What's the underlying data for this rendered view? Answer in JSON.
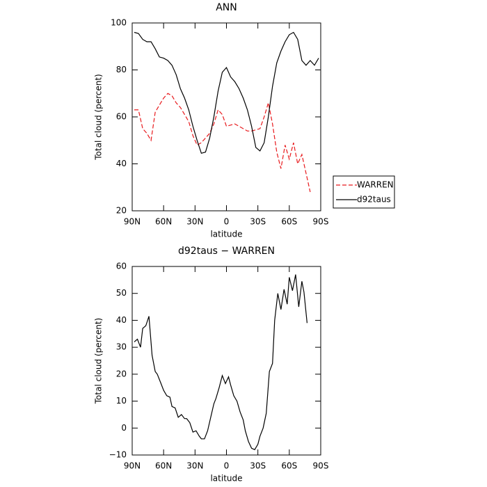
{
  "chart_data": [
    {
      "type": "line",
      "title": "ANN",
      "xlabel": "latitude",
      "ylabel": "Total cloud (percent)",
      "x": [
        88,
        84,
        80,
        76,
        72,
        68,
        64,
        60,
        56,
        52,
        48,
        44,
        40,
        36,
        32,
        28,
        24,
        20,
        16,
        12,
        8,
        4,
        0,
        -4,
        -8,
        -12,
        -16,
        -20,
        -24,
        -28,
        -32,
        -36,
        -40,
        -44,
        -48,
        -52,
        -56,
        -60,
        -64,
        -68,
        -72,
        -76,
        -80,
        -84,
        -88
      ],
      "series": [
        {
          "name": "WARREN",
          "color": "#e8191c",
          "line_style": "dashed",
          "values": [
            63,
            63,
            55,
            53,
            50,
            62,
            65,
            68,
            70,
            69,
            66,
            64,
            61,
            58,
            52,
            48,
            49,
            51,
            53,
            57,
            63,
            61,
            56,
            56.5,
            57,
            56,
            55,
            54,
            54,
            54.5,
            55,
            60,
            66,
            57,
            45,
            38,
            48,
            42,
            49,
            40,
            44,
            36,
            28,
            null,
            null
          ]
        },
        {
          "name": "d92taus",
          "color": "#000000",
          "line_style": "solid",
          "values": [
            96,
            95.5,
            93,
            92,
            92,
            89,
            85.5,
            85,
            84,
            82,
            78,
            72,
            68,
            63,
            56,
            50,
            44.5,
            45,
            51,
            60,
            71,
            79,
            81,
            77,
            75,
            72,
            68,
            63,
            56,
            47,
            45.5,
            49,
            60,
            73,
            83,
            88,
            92,
            95,
            96,
            93,
            84,
            82,
            84,
            82,
            85
          ]
        }
      ],
      "xlim": [
        90,
        -90
      ],
      "xticks": [
        {
          "value": 90,
          "label": "90N"
        },
        {
          "value": 60,
          "label": "60N"
        },
        {
          "value": 30,
          "label": "30N"
        },
        0,
        {
          "value": -30,
          "label": "30S"
        },
        {
          "value": -60,
          "label": "60S"
        },
        {
          "value": -90,
          "label": "90S"
        }
      ],
      "ylim": [
        20,
        100
      ],
      "yticks": [
        20,
        40,
        60,
        80,
        100
      ],
      "legend": "right"
    },
    {
      "type": "line",
      "title": "d92taus − WARREN",
      "xlabel": "latitude",
      "ylabel": "Total cloud (percent)",
      "x": [
        88,
        85,
        82,
        80,
        77,
        74,
        71,
        68,
        66,
        63,
        60,
        57,
        54,
        52,
        49,
        46,
        43,
        40,
        38,
        35,
        32,
        29,
        26,
        24,
        21,
        18,
        15,
        12,
        10,
        7,
        4,
        1,
        -2,
        -4,
        -7,
        -10,
        -13,
        -16,
        -18,
        -21,
        -24,
        -27,
        -30,
        -32,
        -35,
        -38,
        -41,
        -44,
        -46,
        -49,
        -52,
        -55,
        -58,
        -60,
        -63,
        -66,
        -69,
        -72,
        -74,
        -77
      ],
      "values": [
        32,
        33,
        30,
        37,
        38,
        41.5,
        27,
        21,
        20,
        17,
        14,
        12,
        11.5,
        8,
        7.5,
        4,
        5,
        3.5,
        3.5,
        2,
        -1.5,
        -1,
        -3,
        -4,
        -4,
        -1,
        4,
        9,
        11,
        15,
        19.5,
        16.5,
        19,
        16,
        12,
        10,
        6,
        3,
        -1,
        -5,
        -7.5,
        -8,
        -6,
        -3,
        0,
        5.5,
        21,
        24,
        40,
        50,
        44,
        51.5,
        46,
        56,
        51,
        57,
        45,
        54.5,
        50.5,
        39
      ],
      "color": "#000000",
      "xlim": [
        90,
        -90
      ],
      "xticks": [
        {
          "value": 90,
          "label": "90N"
        },
        {
          "value": 60,
          "label": "60N"
        },
        {
          "value": 30,
          "label": "30N"
        },
        0,
        {
          "value": -30,
          "label": "30S"
        },
        {
          "value": -60,
          "label": "60S"
        },
        {
          "value": -90,
          "label": "90S"
        }
      ],
      "ylim": [
        -10,
        60
      ],
      "yticks": [
        {
          "value": -10,
          "label": "−10"
        },
        0,
        10,
        20,
        30,
        40,
        50,
        60
      ]
    }
  ]
}
